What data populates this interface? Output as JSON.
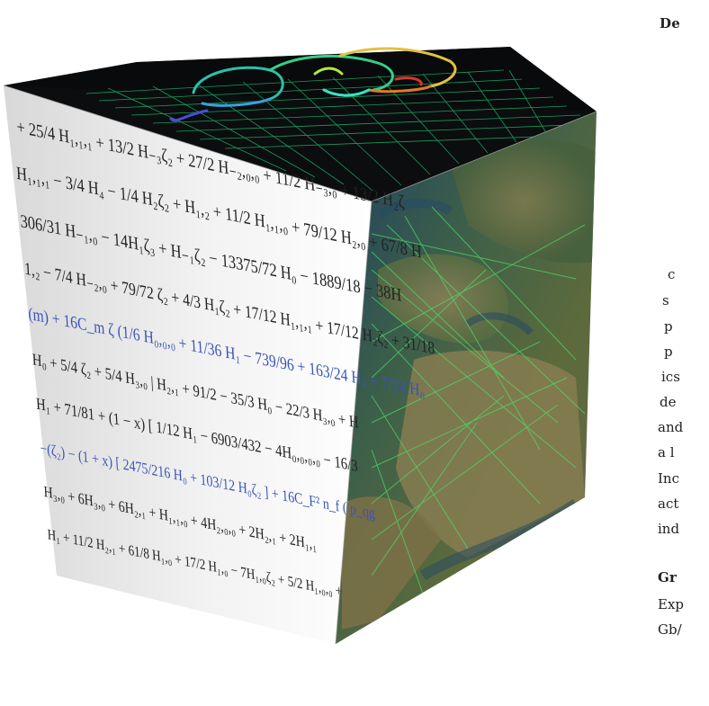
{
  "sidebar": {
    "heading": "De",
    "body_lines": [
      "c",
      "s",
      "p",
      "p",
      "ics",
      "de",
      "and",
      "a l",
      "Inc",
      "act",
      "ind"
    ],
    "subheading": "Gr",
    "sub_lines": [
      "Exp",
      "Gb/"
    ]
  },
  "cube": {
    "equation_lines": [
      "+ 25/4 H₁,₁,₁ + 13/2 H₋₃ζ₂ + 27/2 H₋₂,₀,₀ + 11/2 H₋₃,₀ + 13/2 H₂ζ",
      "H₁,₁,₁ − 3/4 H₄ − 1/4 H₂ζ₂ + H₁,₂ + 11/2 H₁,₁,₀ + 79/12 H₂,₀ + 67/8 H",
      "306/31 H₋₁,₀ − 14H₁ζ₃ + H₋₁ζ₂ − 13375/72 H₀ − 1889/18 − 38H",
      "1,₂ − 7/4 H₋₂,₀ + 79/72 ζ₂ + 4/3 H₁ζ₂ + 17/12 H₁,₁,₁ + 17/12 H₂ζ₂ + 31/18",
      "(m) + 16C_m ζ (1/6 H₀,₀,₀ + 11/36 H₁ − 739/96 + 163/24 H₀ + 7/24 H₀",
      "H₀ + 5/4 ζ₂ + 5/4 H₃,₀ | H₂,₁ + 91/2 − 35/3 H₀ − 22/3 H₃,₀ + H",
      "H₁ + 71/81 + (1 − x) [ 1/12 H₁ − 6903/432 − 4H₀,₀,₀,₀ − 16/3",
      "−(ζ₂) − (1 + x) [ 2475/216 H₀ + 103/12 H₀ζ₂ ] + 16C_F² n_f ( p_qg",
      "H₃,₀ + 6H₃,₀ + 6H₂,₁ + H₁,₁,₀ + 4H₂,₀,₀ + 2H₂,₁ + 2H₁,₁",
      "H₁ + 11/2 H₂,₁ + 61/8 H₁,₀ + 17/2 H₁,₀ − 7H₁,₀ζ₂ + 5/2 H₁,₀,₀ +"
    ]
  }
}
